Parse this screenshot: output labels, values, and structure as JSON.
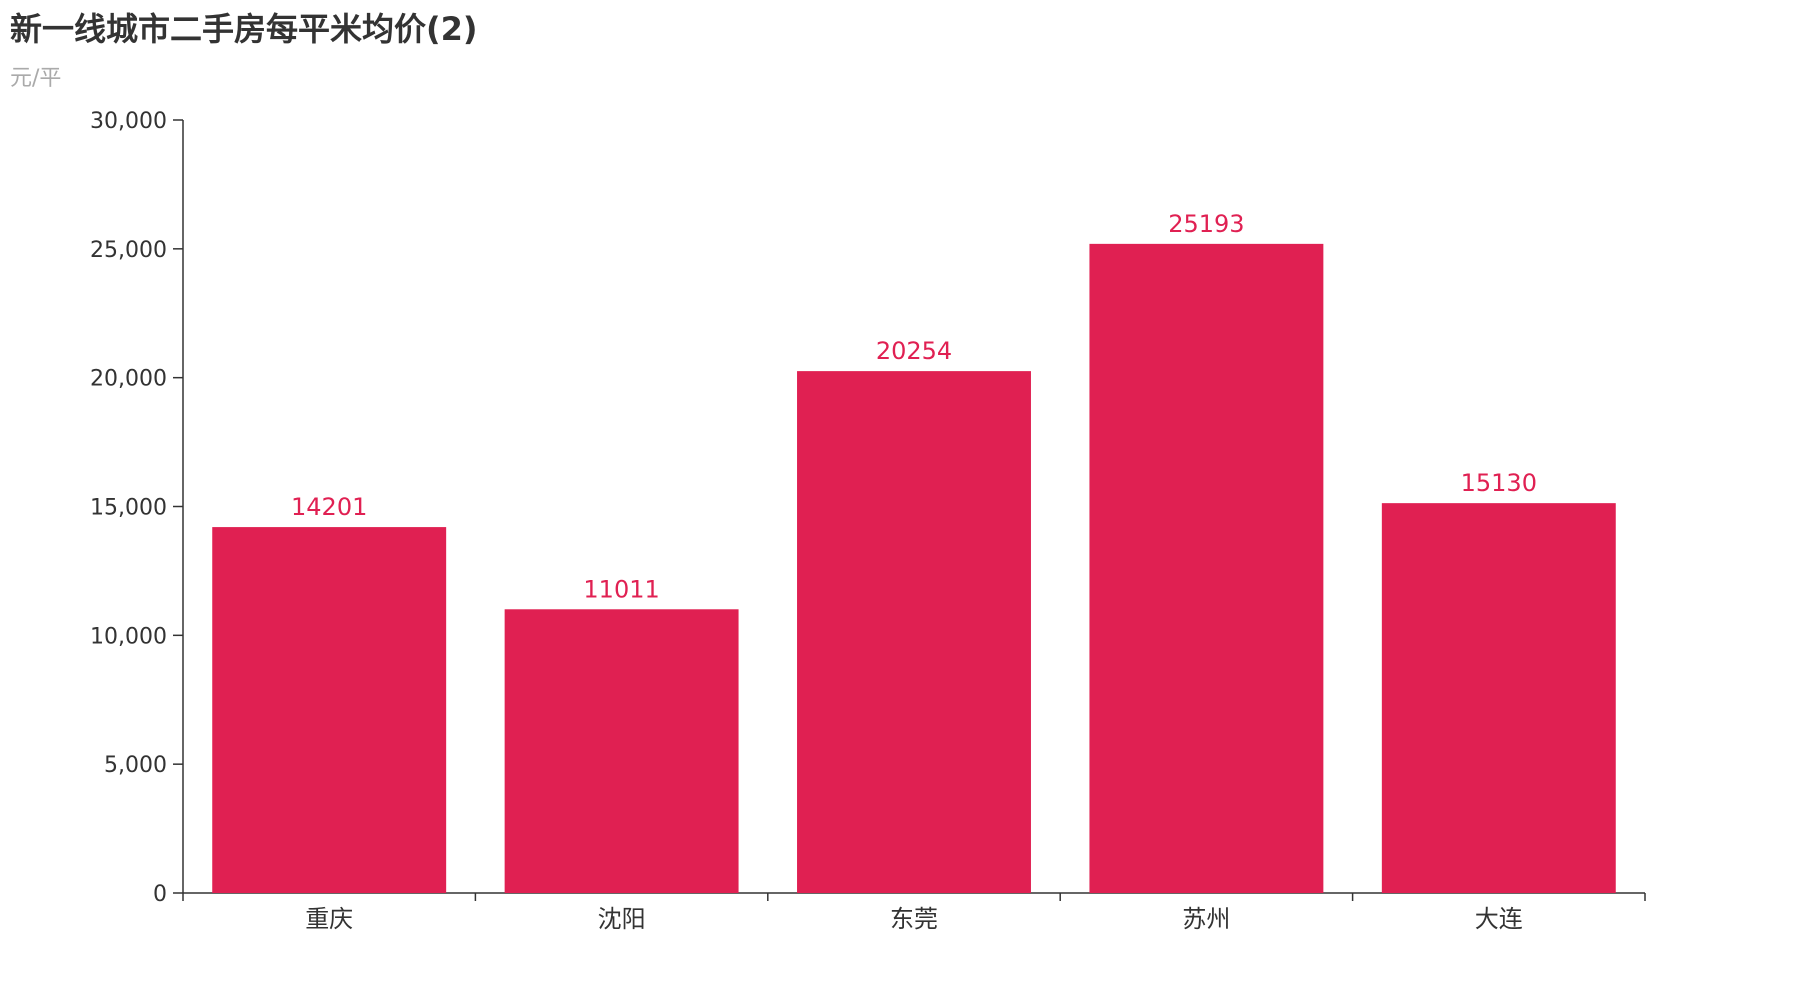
{
  "chart_data": {
    "type": "bar",
    "title": "新一线城市二手房每平米均价(2)",
    "subtitle": "元/平",
    "categories": [
      "重庆",
      "沈阳",
      "东莞",
      "苏州",
      "大连"
    ],
    "values": [
      14201,
      11011,
      20254,
      25193,
      15130
    ],
    "ylim": [
      0,
      30000
    ],
    "yticks": [
      0,
      5000,
      10000,
      15000,
      20000,
      25000,
      30000
    ],
    "ytick_labels": [
      "0",
      "5,000",
      "10,000",
      "15,000",
      "20,000",
      "25,000",
      "30,000"
    ],
    "xlabel": "",
    "ylabel": "",
    "grid": false,
    "bar_color": "#e02052",
    "label_color": "#e02052",
    "axis_color": "#333333"
  }
}
